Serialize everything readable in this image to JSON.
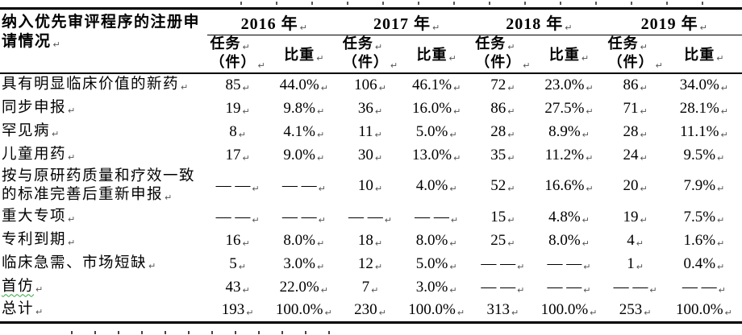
{
  "formatting": {
    "pilcrow": "↵",
    "text_color": "#000000",
    "background_color": "#ffffff",
    "squiggle_color": "#2fa83c"
  },
  "table": {
    "row_header_title": "纳入优先审评程序的注册申请情况",
    "row_header_lines": [
      "纳入优先审评程序的注册申",
      "请情况"
    ],
    "year_groups": [
      {
        "label": "2016 年"
      },
      {
        "label": "2017 年"
      },
      {
        "label": "2018 年"
      },
      {
        "label": "2019 年"
      }
    ],
    "sub_headers": {
      "task_line1": "任务",
      "task_line2": "（件）",
      "share": "比重"
    },
    "rows": [
      {
        "label": "具有明显临床价值的新药",
        "cells": [
          "85",
          "44.0%",
          "106",
          "46.1%",
          "72",
          "23.0%",
          "86",
          "34.0%"
        ]
      },
      {
        "label": "同步申报",
        "cells": [
          "19",
          "9.8%",
          "36",
          "16.0%",
          "86",
          "27.5%",
          "71",
          "28.1%"
        ]
      },
      {
        "label": "罕见病",
        "cells": [
          "8",
          "4.1%",
          "11",
          "5.0%",
          "28",
          "8.9%",
          "28",
          "11.1%"
        ]
      },
      {
        "label": "儿童用药",
        "cells": [
          "17",
          "9.0%",
          "30",
          "13.0%",
          "35",
          "11.2%",
          "24",
          "9.5%"
        ]
      },
      {
        "label": "按与原研药质量和疗效一致的标准完善后重新申报",
        "label_lines": [
          "按与原研药质量和疗效一致",
          "的标准完善后重新申报"
        ],
        "cells": [
          "— —",
          "— —",
          "10",
          "4.0%",
          "52",
          "16.6%",
          "20",
          "7.9%"
        ]
      },
      {
        "label": "重大专项",
        "cells": [
          "— —",
          "— —",
          "— —",
          "— —",
          "15",
          "4.8%",
          "19",
          "7.5%"
        ]
      },
      {
        "label": "专利到期",
        "cells": [
          "16",
          "8.0%",
          "18",
          "8.0%",
          "25",
          "8.0%",
          "4",
          "1.6%"
        ]
      },
      {
        "label": "临床急需、市场短缺",
        "cells": [
          "5",
          "3.0%",
          "12",
          "5.0%",
          "— —",
          "— —",
          "1",
          "0.4%"
        ]
      },
      {
        "label": "首仿",
        "spellcheck": true,
        "cells": [
          "43",
          "22.0%",
          "7",
          "3.0%",
          "— —",
          "— —",
          "— —",
          "— —"
        ]
      },
      {
        "label": "总计",
        "cells": [
          "193",
          "100.0%",
          "230",
          "100.0%",
          "313",
          "100.0%",
          "253",
          "100.0%"
        ]
      }
    ]
  }
}
